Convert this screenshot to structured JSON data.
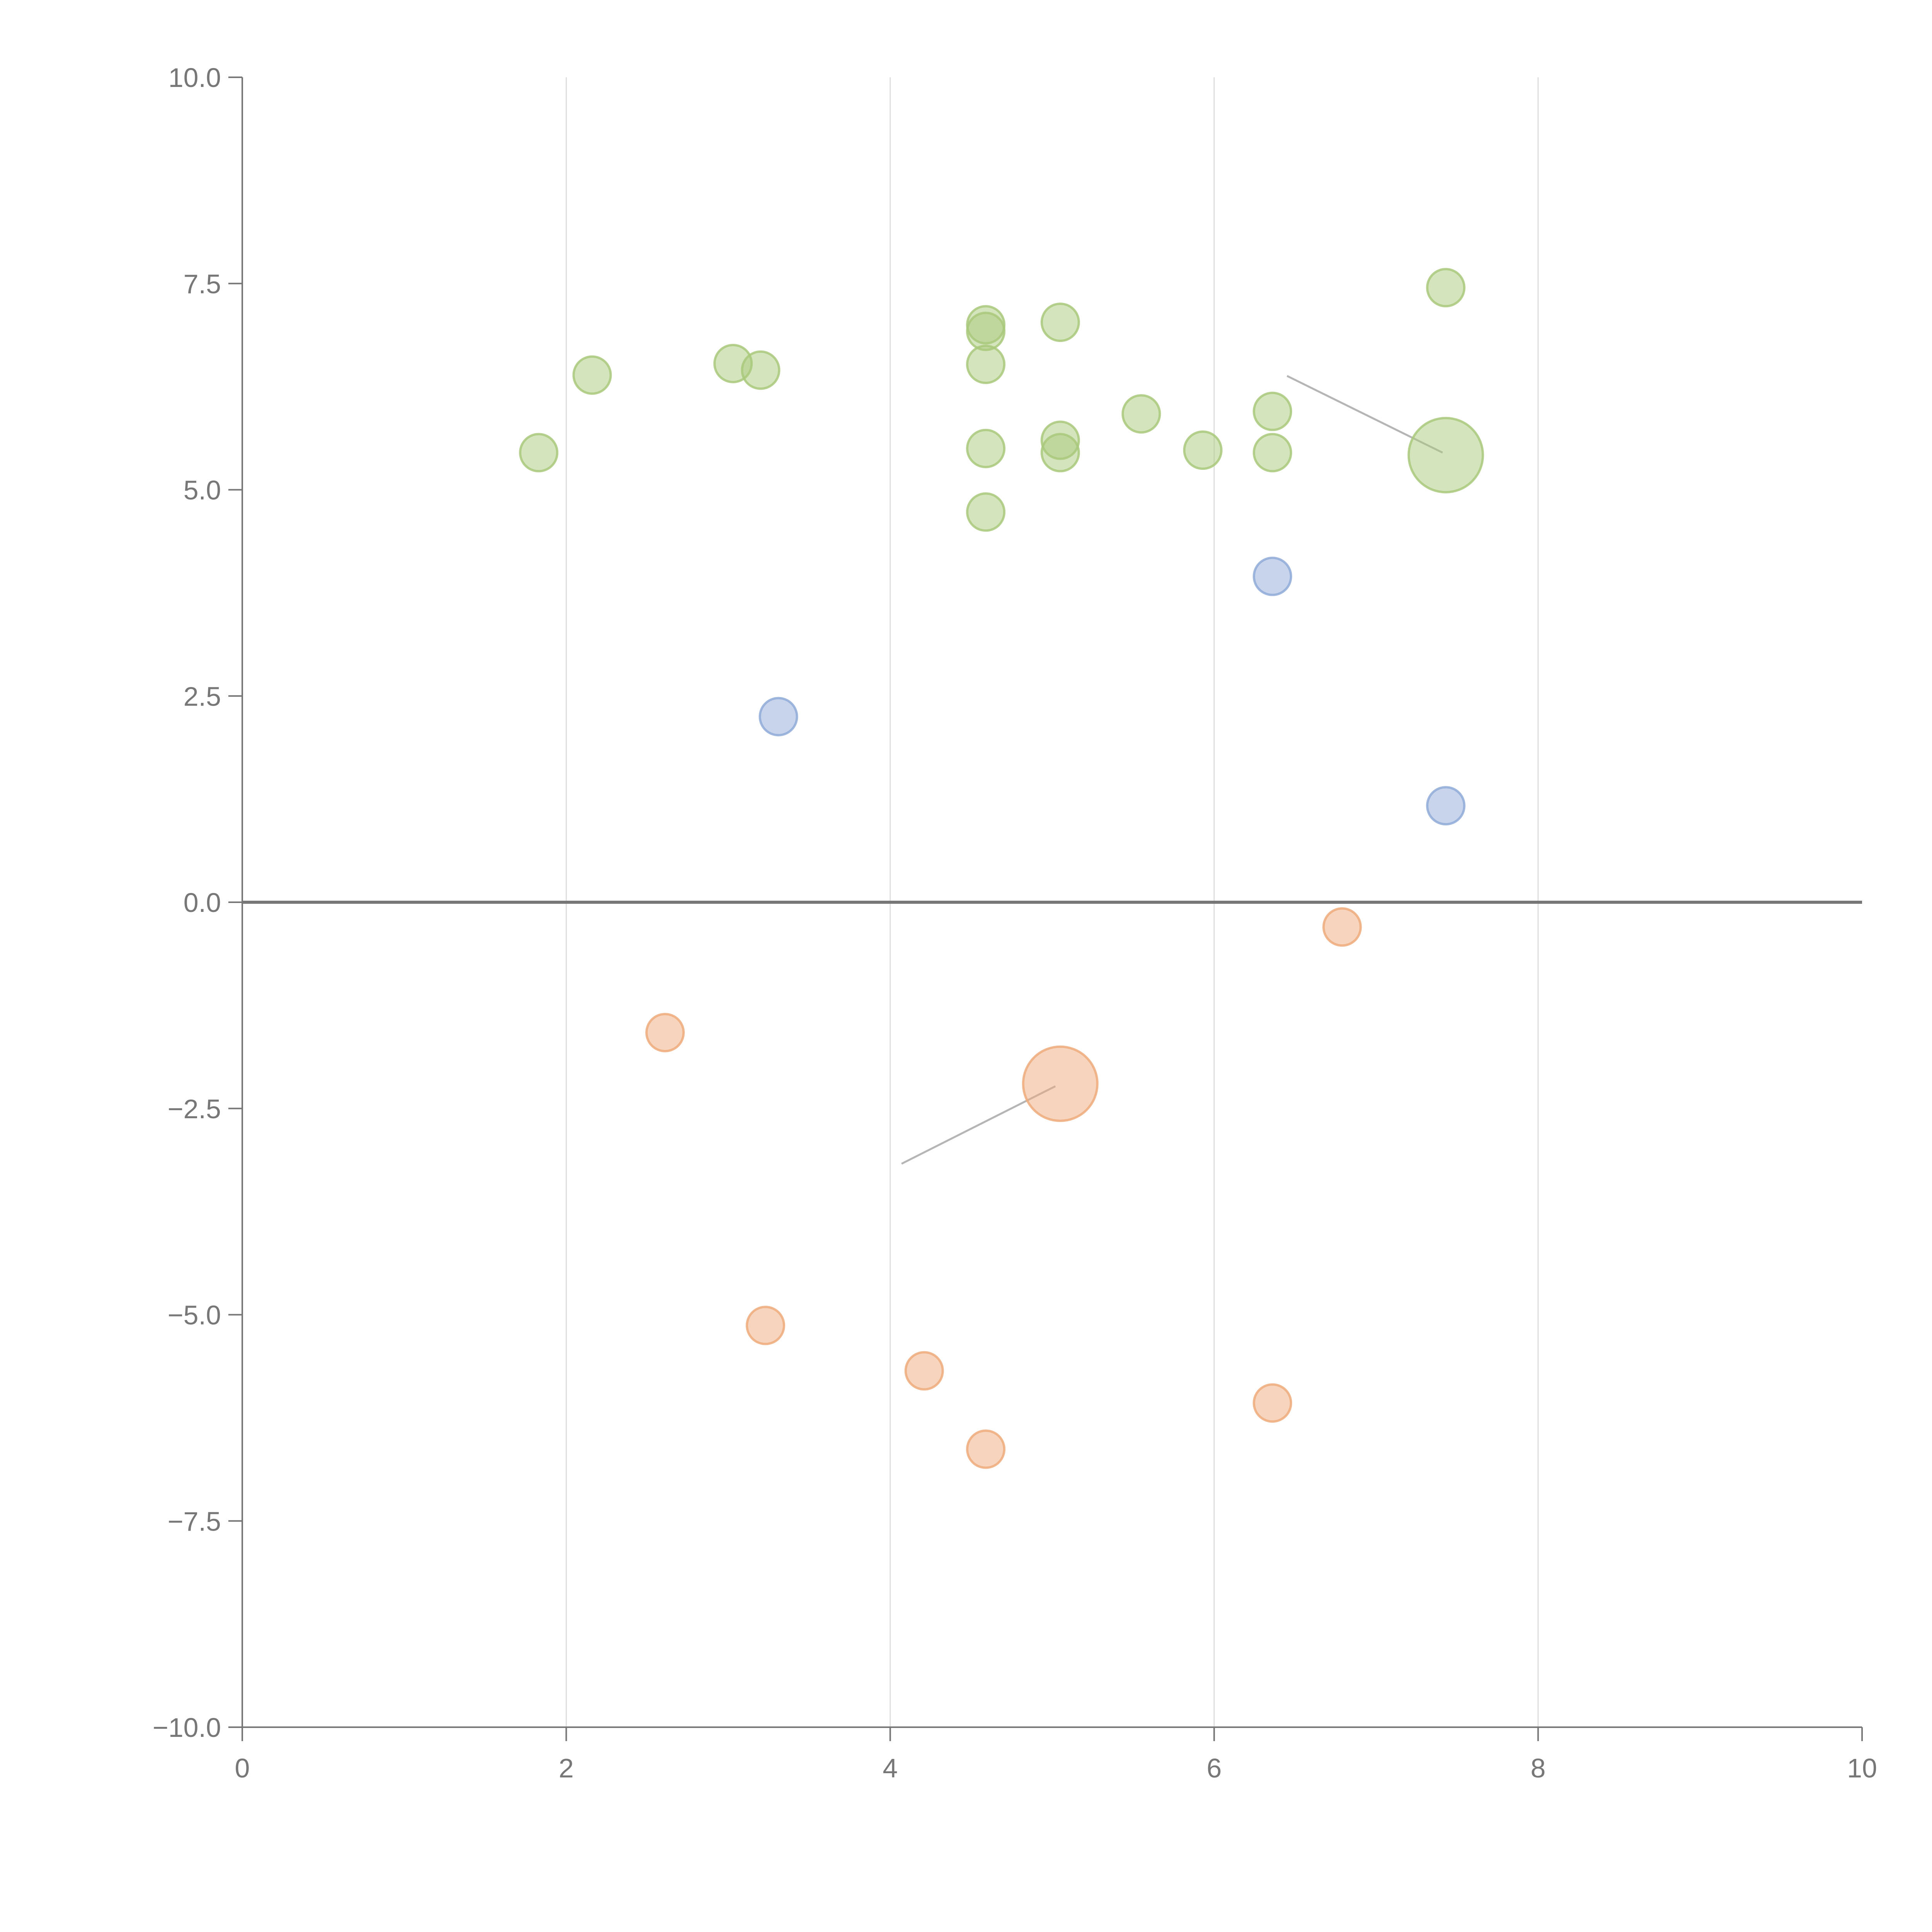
{
  "chart_data": {
    "type": "scatter",
    "title": "",
    "xlabel": "",
    "ylabel": "",
    "xlim": [
      0,
      10
    ],
    "ylim": [
      -10,
      10
    ],
    "x_ticks": [
      0,
      2,
      4,
      6,
      8,
      10
    ],
    "x_tick_labels": [
      "0",
      "2",
      "4",
      "6",
      "8",
      "10"
    ],
    "y_ticks": [
      10,
      7.5,
      5,
      2.5,
      0,
      -2.5,
      -5,
      -7.5,
      -10
    ],
    "y_tick_labels": [
      "10.0",
      "7.5",
      "5.0",
      "2.5",
      "0.0",
      "−2.5",
      "−5.0",
      "−7.5",
      "−10.0"
    ],
    "vertical_grid": true,
    "zero_line": true,
    "series": [
      {
        "name": "green",
        "color": "#a9c97b",
        "points": [
          {
            "x": 1.83,
            "y": 5.45,
            "size": 1
          },
          {
            "x": 2.16,
            "y": 6.39,
            "size": 1
          },
          {
            "x": 3.03,
            "y": 6.53,
            "size": 1
          },
          {
            "x": 3.2,
            "y": 6.45,
            "size": 1
          },
          {
            "x": 4.59,
            "y": 7.0,
            "size": 1
          },
          {
            "x": 4.59,
            "y": 6.92,
            "size": 1
          },
          {
            "x": 4.59,
            "y": 6.52,
            "size": 1
          },
          {
            "x": 4.59,
            "y": 5.5,
            "size": 1
          },
          {
            "x": 4.59,
            "y": 4.73,
            "size": 1
          },
          {
            "x": 5.05,
            "y": 7.03,
            "size": 1
          },
          {
            "x": 5.05,
            "y": 5.6,
            "size": 1
          },
          {
            "x": 5.05,
            "y": 5.45,
            "size": 1
          },
          {
            "x": 5.55,
            "y": 5.92,
            "size": 1
          },
          {
            "x": 5.93,
            "y": 5.48,
            "size": 1
          },
          {
            "x": 6.36,
            "y": 5.95,
            "size": 1
          },
          {
            "x": 6.36,
            "y": 5.45,
            "size": 1
          },
          {
            "x": 7.43,
            "y": 7.45,
            "size": 1
          },
          {
            "x": 7.43,
            "y": 5.42,
            "size": 4
          }
        ]
      },
      {
        "name": "blue",
        "color": "#8faad8",
        "points": [
          {
            "x": 3.31,
            "y": 2.25,
            "size": 1
          },
          {
            "x": 6.36,
            "y": 3.95,
            "size": 1
          },
          {
            "x": 7.43,
            "y": 1.17,
            "size": 1
          }
        ]
      },
      {
        "name": "orange",
        "color": "#eeaa7b",
        "points": [
          {
            "x": 2.61,
            "y": -1.58,
            "size": 1
          },
          {
            "x": 3.23,
            "y": -5.13,
            "size": 1
          },
          {
            "x": 4.21,
            "y": -5.68,
            "size": 1
          },
          {
            "x": 4.59,
            "y": -6.63,
            "size": 1
          },
          {
            "x": 5.05,
            "y": -2.2,
            "size": 4
          },
          {
            "x": 6.36,
            "y": -6.07,
            "size": 1
          },
          {
            "x": 6.79,
            "y": -0.3,
            "size": 1
          }
        ]
      }
    ],
    "annotations": [
      {
        "type": "line",
        "from": {
          "x": 6.45,
          "y": 6.38
        },
        "to": {
          "x": 7.41,
          "y": 5.45
        }
      },
      {
        "type": "line",
        "from": {
          "x": 4.07,
          "y": -3.17
        },
        "to": {
          "x": 5.02,
          "y": -2.23
        }
      }
    ]
  }
}
